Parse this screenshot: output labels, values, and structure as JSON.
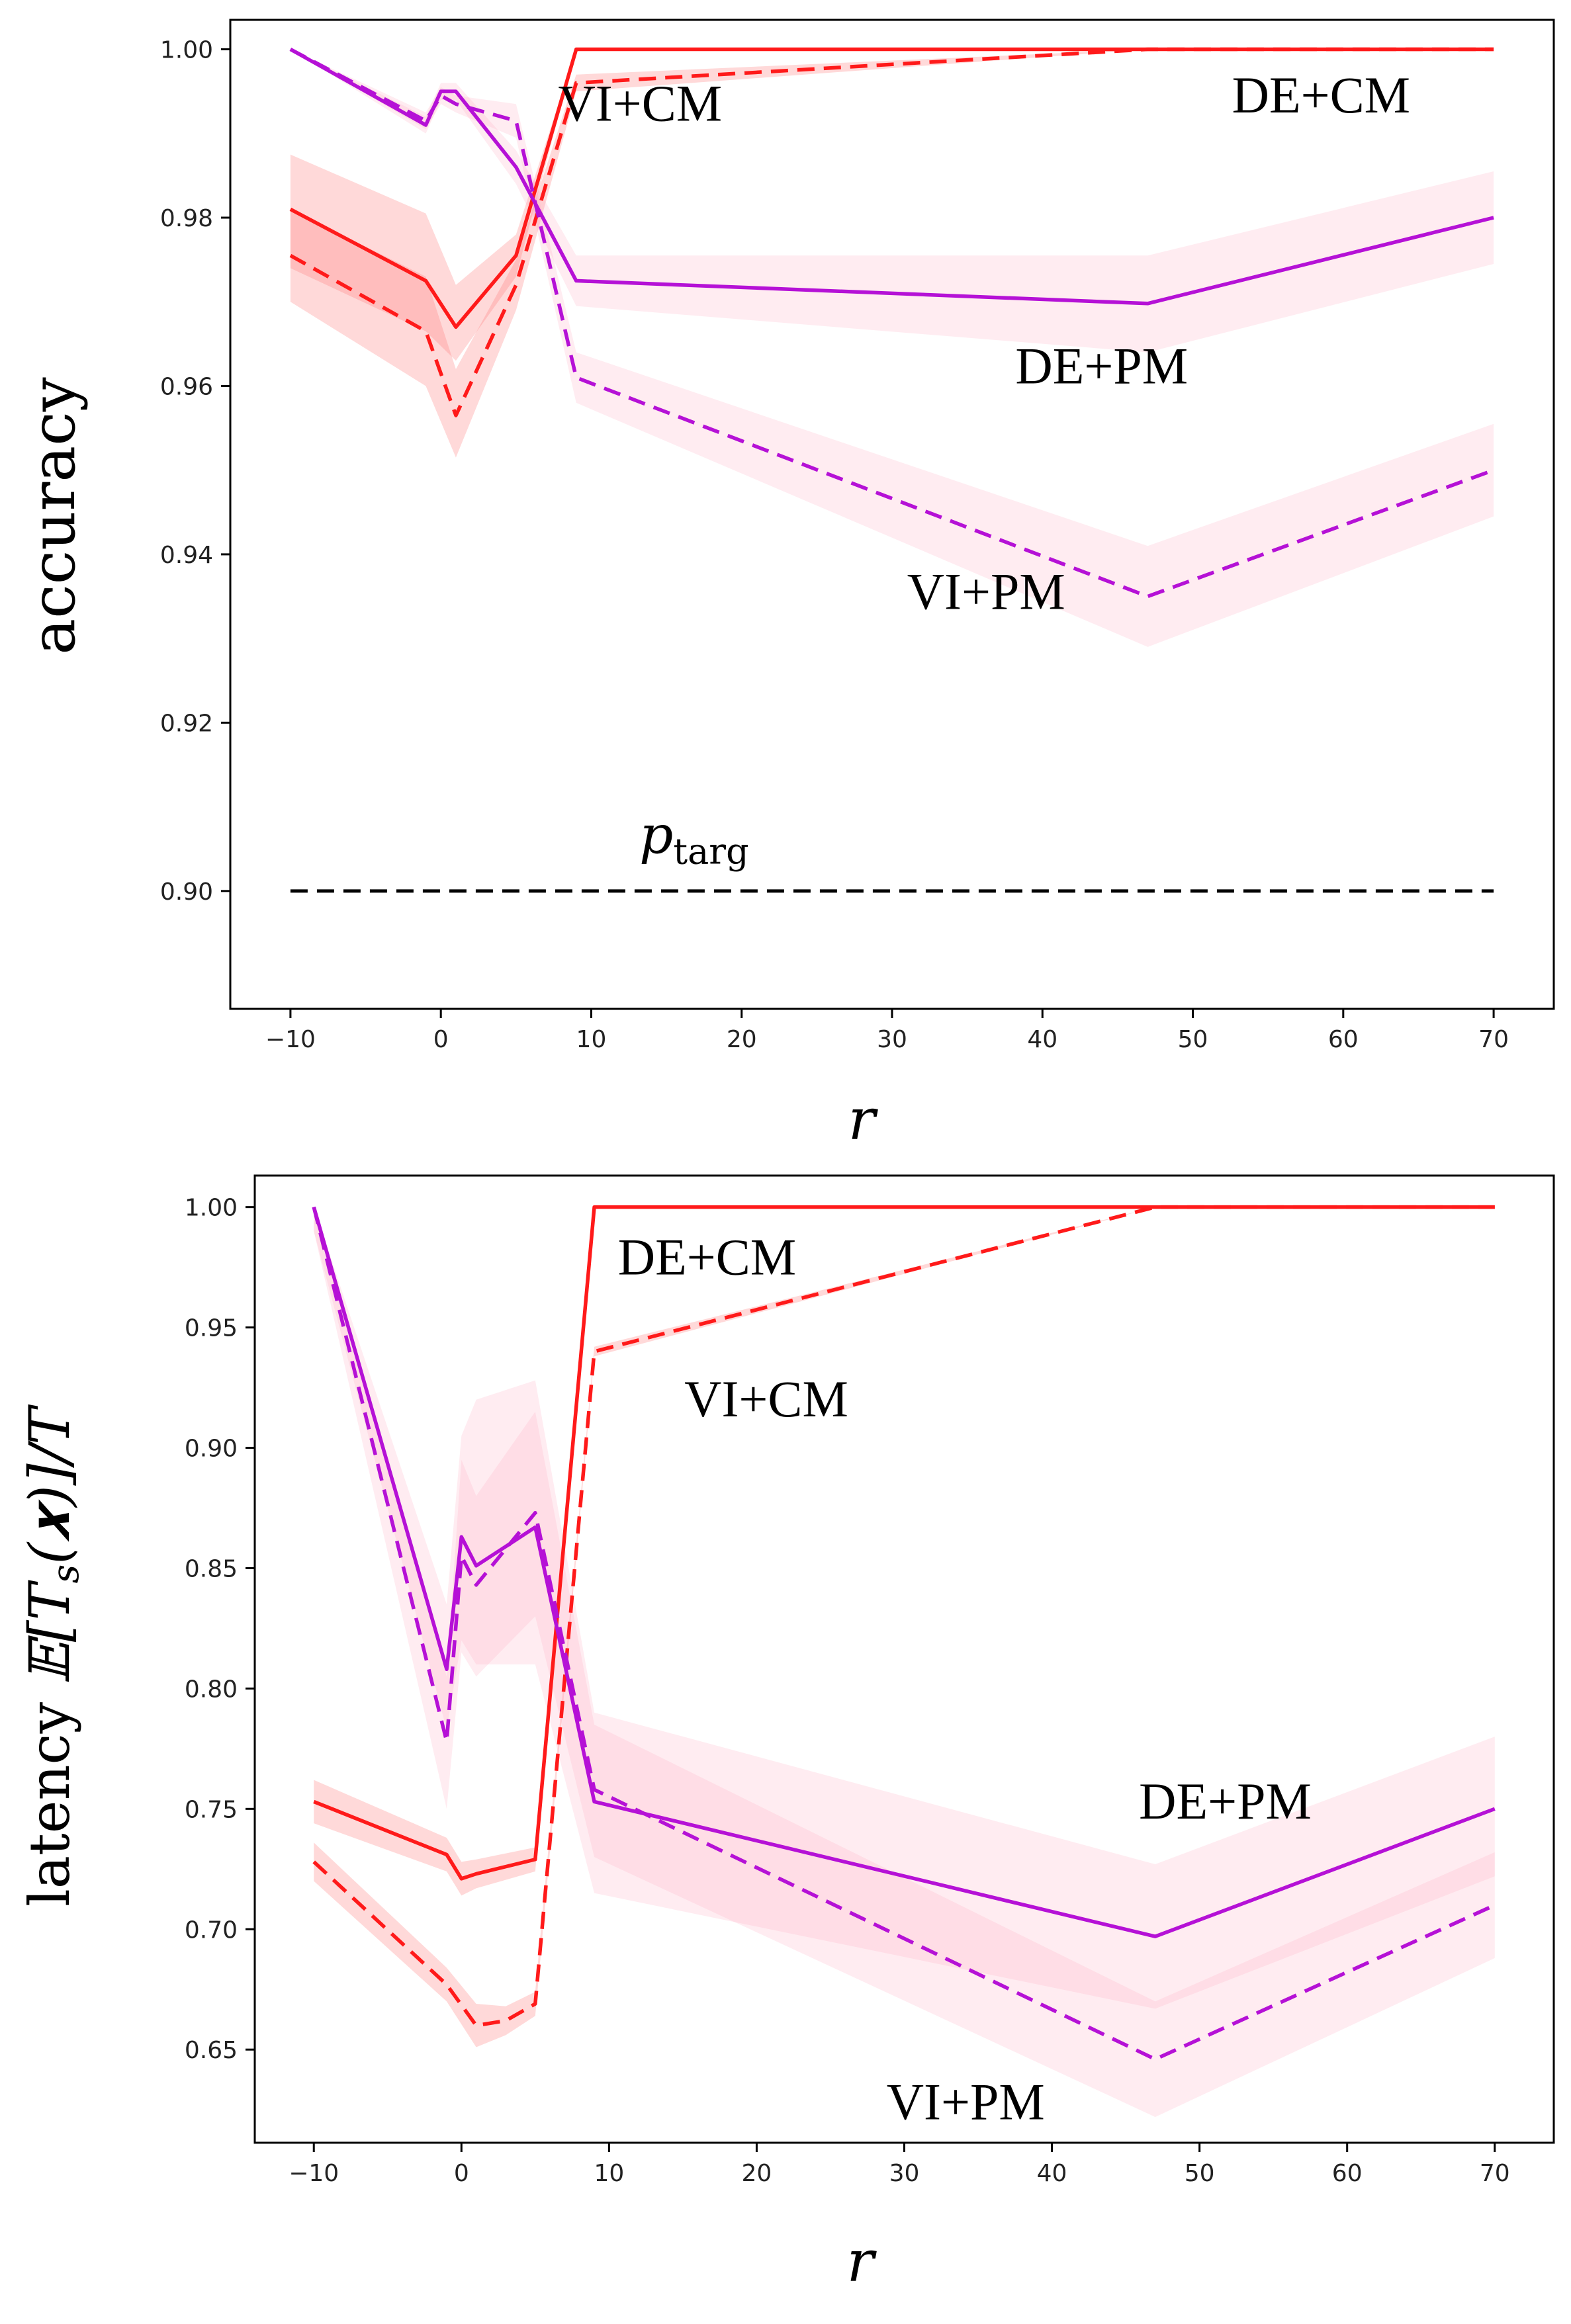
{
  "chart_data": [
    {
      "type": "line",
      "ylabel": "accuracy",
      "xlabel": "r",
      "xlim": [
        -14,
        74
      ],
      "ylim": [
        0.886,
        1.0035
      ],
      "xticks": [
        -10,
        0,
        10,
        20,
        30,
        40,
        50,
        60,
        70
      ],
      "xtick_labels": [
        "−10",
        "0",
        "10",
        "20",
        "30",
        "40",
        "50",
        "60",
        "70"
      ],
      "yticks": [
        0.9,
        0.92,
        0.94,
        0.96,
        0.98,
        1.0
      ],
      "ytick_labels": [
        "0.90",
        "0.92",
        "0.94",
        "0.96",
        "0.98",
        "1.00"
      ],
      "series": [
        {
          "name": "DE+CM",
          "color": "#ff1a1a",
          "style": "solid",
          "x": [
            -10,
            -1,
            1,
            5,
            9,
            47,
            70
          ],
          "y": [
            0.981,
            0.9725,
            0.967,
            0.9755,
            1.0,
            1.0,
            1.0
          ],
          "band_lo": [
            0.974,
            0.9665,
            0.963,
            0.973,
            1.0,
            1.0,
            1.0
          ],
          "band_hi": [
            0.9875,
            0.9805,
            0.972,
            0.978,
            1.0,
            1.0,
            1.0
          ]
        },
        {
          "name": "VI+CM",
          "color": "#ff1a1a",
          "style": "dashed",
          "x": [
            -10,
            -1,
            1,
            5,
            9,
            47,
            70
          ],
          "y": [
            0.9755,
            0.9665,
            0.9565,
            0.972,
            0.996,
            1.0,
            1.0
          ],
          "band_lo": [
            0.97,
            0.96,
            0.9515,
            0.969,
            0.995,
            1.0,
            1.0
          ],
          "band_hi": [
            0.981,
            0.973,
            0.962,
            0.975,
            0.997,
            1.0,
            1.0
          ]
        },
        {
          "name": "DE+PM",
          "color": "#b511d6",
          "style": "solid",
          "x": [
            -10,
            -1,
            0,
            1,
            5,
            9,
            47,
            70
          ],
          "y": [
            1.0,
            0.991,
            0.995,
            0.995,
            0.986,
            0.9725,
            0.9698,
            0.98
          ],
          "band_lo": [
            1.0,
            0.99,
            0.994,
            0.994,
            0.984,
            0.9695,
            0.964,
            0.9745
          ],
          "band_hi": [
            1.0,
            0.992,
            0.996,
            0.996,
            0.988,
            0.9755,
            0.9755,
            0.9855
          ]
        },
        {
          "name": "VI+PM",
          "color": "#b511d6",
          "style": "dashed",
          "x": [
            -10,
            -1,
            0,
            1,
            5,
            9,
            47,
            70
          ],
          "y": [
            1.0,
            0.9915,
            0.9945,
            0.9935,
            0.9915,
            0.961,
            0.935,
            0.95
          ],
          "band_lo": [
            1.0,
            0.9905,
            0.9935,
            0.9925,
            0.9895,
            0.958,
            0.929,
            0.9445
          ],
          "band_hi": [
            1.0,
            0.9925,
            0.9955,
            0.9945,
            0.9935,
            0.964,
            0.941,
            0.9555
          ]
        },
        {
          "name": "p_targ",
          "color": "#000000",
          "style": "dashed",
          "x": [
            -10,
            70
          ],
          "y": [
            0.9,
            0.9
          ]
        }
      ],
      "annotations": [
        {
          "text": "VI+CM",
          "x": 7.8,
          "y": 0.9915
        },
        {
          "text": "DE+CM",
          "x": 52.6,
          "y": 0.9925
        },
        {
          "text": "DE+PM",
          "x": 38.2,
          "y": 0.9603
        },
        {
          "text": "VI+PM",
          "x": 31.0,
          "y": 0.9335
        },
        {
          "text": "p",
          "subscript": "targ",
          "x": 13.2,
          "y": 0.9045
        }
      ]
    },
    {
      "type": "line",
      "ylabel": "latency 𝔼[T_s(x)]/T",
      "ylabel_main": "latency ",
      "ylabel_math": "𝔼[T",
      "ylabel_sub": "s",
      "ylabel_tail": "(𝒙)]/T",
      "xlabel": "r",
      "xlim": [
        -14,
        74
      ],
      "ylim": [
        0.6113,
        1.0131
      ],
      "xticks": [
        -10,
        0,
        10,
        20,
        30,
        40,
        50,
        60,
        70
      ],
      "xtick_labels": [
        "−10",
        "0",
        "10",
        "20",
        "30",
        "40",
        "50",
        "60",
        "70"
      ],
      "yticks": [
        0.65,
        0.7,
        0.75,
        0.8,
        0.85,
        0.9,
        0.95,
        1.0
      ],
      "ytick_labels": [
        "0.65",
        "0.70",
        "0.75",
        "0.80",
        "0.85",
        "0.90",
        "0.95",
        "1.00"
      ],
      "series": [
        {
          "name": "DE+CM",
          "color": "#ff1a1a",
          "style": "solid",
          "x": [
            -10,
            -1,
            0,
            1,
            5,
            9,
            47,
            70
          ],
          "y": [
            0.753,
            0.731,
            0.721,
            0.723,
            0.729,
            1.0,
            1.0,
            1.0
          ],
          "band_lo": [
            0.744,
            0.724,
            0.714,
            0.717,
            0.724,
            1.0,
            1.0,
            1.0
          ],
          "band_hi": [
            0.762,
            0.738,
            0.728,
            0.729,
            0.734,
            1.0,
            1.0,
            1.0
          ]
        },
        {
          "name": "VI+CM",
          "color": "#ff1a1a",
          "style": "dashed",
          "x": [
            -10,
            -1,
            1,
            3,
            5,
            9,
            47,
            70
          ],
          "y": [
            0.728,
            0.677,
            0.66,
            0.662,
            0.669,
            0.94,
            1.0,
            1.0
          ],
          "band_lo": [
            0.72,
            0.67,
            0.651,
            0.656,
            0.664,
            0.938,
            1.0,
            1.0
          ],
          "band_hi": [
            0.736,
            0.684,
            0.669,
            0.668,
            0.674,
            0.942,
            1.0,
            1.0
          ]
        },
        {
          "name": "DE+PM",
          "color": "#b511d6",
          "style": "solid",
          "x": [
            -10,
            -1,
            0,
            1,
            5,
            9,
            47,
            70
          ],
          "y": [
            1.0,
            0.808,
            0.863,
            0.851,
            0.867,
            0.753,
            0.697,
            0.75
          ],
          "band_lo": [
            0.99,
            0.783,
            0.82,
            0.81,
            0.81,
            0.715,
            0.667,
            0.722
          ],
          "band_hi": [
            1.0,
            0.835,
            0.905,
            0.92,
            0.928,
            0.79,
            0.727,
            0.78
          ]
        },
        {
          "name": "VI+PM",
          "color": "#b511d6",
          "style": "dashed",
          "x": [
            -10,
            -1,
            0,
            1,
            5,
            9,
            47,
            70
          ],
          "y": [
            1.0,
            0.778,
            0.855,
            0.843,
            0.873,
            0.758,
            0.646,
            0.71
          ],
          "band_lo": [
            0.99,
            0.75,
            0.815,
            0.805,
            0.83,
            0.73,
            0.622,
            0.688
          ],
          "band_hi": [
            1.0,
            0.805,
            0.895,
            0.88,
            0.915,
            0.785,
            0.67,
            0.732
          ]
        }
      ],
      "annotations": [
        {
          "text": "DE+CM",
          "x": 10.6,
          "y": 0.972
        },
        {
          "text": "VI+CM",
          "x": 15.1,
          "y": 0.913
        },
        {
          "text": "DE+PM",
          "x": 45.9,
          "y": 0.746
        },
        {
          "text": "VI+PM",
          "x": 28.8,
          "y": 0.621
        }
      ]
    }
  ]
}
